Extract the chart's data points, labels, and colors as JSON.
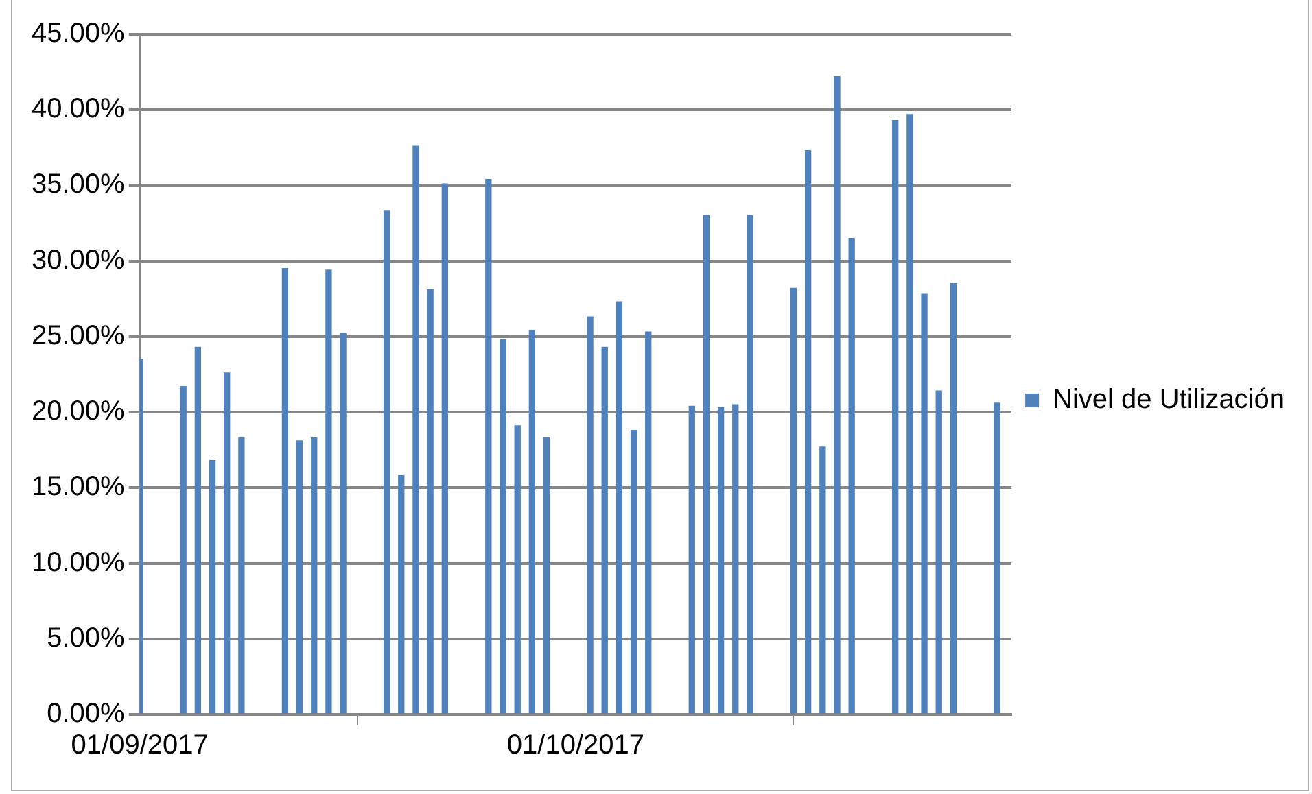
{
  "chart_data": {
    "type": "bar",
    "x": [
      "2017-09-01",
      "2017-09-04",
      "2017-09-05",
      "2017-09-06",
      "2017-09-07",
      "2017-09-08",
      "2017-09-11",
      "2017-09-12",
      "2017-09-13",
      "2017-09-14",
      "2017-09-15",
      "2017-09-18",
      "2017-09-19",
      "2017-09-20",
      "2017-09-21",
      "2017-09-22",
      "2017-09-25",
      "2017-09-26",
      "2017-09-27",
      "2017-09-28",
      "2017-09-29",
      "2017-10-02",
      "2017-10-03",
      "2017-10-04",
      "2017-10-05",
      "2017-10-06",
      "2017-10-09",
      "2017-10-10",
      "2017-10-11",
      "2017-10-12",
      "2017-10-13",
      "2017-10-16",
      "2017-10-17",
      "2017-10-18",
      "2017-10-19",
      "2017-10-20",
      "2017-10-23",
      "2017-10-24",
      "2017-10-25",
      "2017-10-26",
      "2017-10-27",
      "2017-10-30"
    ],
    "series": [
      {
        "name": "Nivel de Utilización",
        "color": "#4f81bd",
        "values": [
          23.5,
          21.7,
          24.3,
          16.8,
          22.6,
          18.3,
          29.5,
          18.1,
          18.3,
          29.4,
          25.2,
          33.3,
          15.8,
          37.6,
          28.1,
          35.1,
          35.4,
          24.8,
          19.1,
          25.4,
          18.3,
          26.3,
          24.3,
          27.3,
          18.8,
          25.3,
          20.4,
          33.0,
          20.3,
          20.5,
          33.0,
          28.2,
          37.3,
          17.7,
          42.2,
          31.5,
          39.3,
          39.7,
          27.8,
          21.4,
          28.5,
          20.6
        ]
      }
    ],
    "xlim": [
      "2017-09-01",
      "2017-10-31"
    ],
    "xticks": [
      {
        "value": "2017-09-01",
        "label": "01/09/2017"
      },
      {
        "value": "2017-10-01",
        "label": "01/10/2017"
      }
    ],
    "ylim": [
      0,
      45
    ],
    "yticks": [
      {
        "value": 0,
        "label": "0.00%"
      },
      {
        "value": 5,
        "label": "5.00%"
      },
      {
        "value": 10,
        "label": "10.00%"
      },
      {
        "value": 15,
        "label": "15.00%"
      },
      {
        "value": 20,
        "label": "20.00%"
      },
      {
        "value": 25,
        "label": "25.00%"
      },
      {
        "value": 30,
        "label": "30.00%"
      },
      {
        "value": 35,
        "label": "35.00%"
      },
      {
        "value": 40,
        "label": "40.00%"
      },
      {
        "value": 45,
        "label": "45.00%"
      }
    ],
    "grid": "y",
    "legend": "right"
  }
}
